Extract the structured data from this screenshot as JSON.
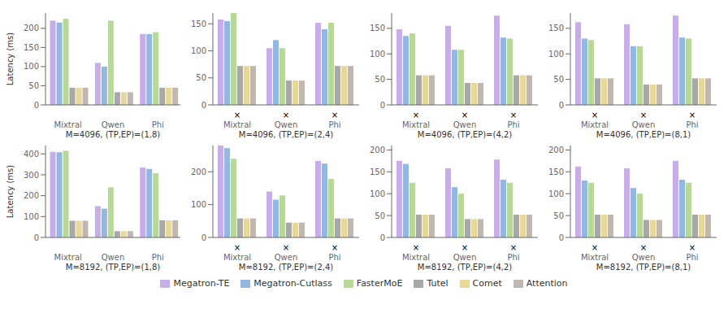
{
  "chart_data": [
    {
      "type": "bar",
      "xlabel": "M=4096, (TP,EP)=(1,8)",
      "ylabel": "Latency (ms)",
      "categories": [
        "Mixtral",
        "Qwen",
        "Phi"
      ],
      "ylim": [
        0,
        240
      ],
      "yticks": [
        0,
        50,
        100,
        150,
        200
      ],
      "series": [
        {
          "name": "Megatron-TE",
          "color": "#c8aee8",
          "values": [
            220,
            110,
            185
          ]
        },
        {
          "name": "Megatron-Cutlass",
          "color": "#92b8e0",
          "values": [
            215,
            100,
            185
          ]
        },
        {
          "name": "FasterMoE",
          "color": "#b8d898",
          "values": [
            225,
            220,
            190
          ]
        },
        {
          "name": "Tutel",
          "color": "#a8a8a8",
          "values": [
            45,
            33,
            45
          ]
        },
        {
          "name": "Comet",
          "color": "#e8d898",
          "values": [
            45,
            33,
            45
          ]
        },
        {
          "name": "Attention",
          "color": "#c0b8b0",
          "values": [
            45,
            33,
            45
          ]
        }
      ]
    },
    {
      "type": "bar",
      "xlabel": "M=4096, (TP,EP)=(2,4)",
      "categories": [
        "Mixtral",
        "Qwen",
        "Phi"
      ],
      "ylim": [
        0,
        170
      ],
      "yticks": [
        0,
        50,
        100,
        150
      ],
      "annotations": [
        {
          "text": "×",
          "x": "Mixtral"
        },
        {
          "text": "×",
          "x": "Qwen"
        },
        {
          "text": "×",
          "x": "Phi"
        }
      ],
      "series": [
        {
          "name": "Megatron-TE",
          "color": "#c8aee8",
          "values": [
            158,
            105,
            152
          ]
        },
        {
          "name": "Megatron-Cutlass",
          "color": "#92b8e0",
          "values": [
            155,
            120,
            140
          ]
        },
        {
          "name": "FasterMoE",
          "color": "#b8d898",
          "values": [
            170,
            105,
            152
          ]
        },
        {
          "name": "Tutel",
          "color": "#a8a8a8",
          "values": [
            72,
            45,
            72
          ]
        },
        {
          "name": "Comet",
          "color": "#e8d898",
          "values": [
            72,
            45,
            72
          ]
        },
        {
          "name": "Attention",
          "color": "#c0b8b0",
          "values": [
            72,
            45,
            72
          ]
        }
      ]
    },
    {
      "type": "bar",
      "xlabel": "M=4096, (TP,EP)=(4,2)",
      "categories": [
        "Mixtral",
        "Qwen",
        "Phi"
      ],
      "ylim": [
        0,
        180
      ],
      "yticks": [
        0,
        50,
        100,
        150
      ],
      "annotations": [
        {
          "text": "×",
          "x": "Mixtral"
        },
        {
          "text": "×",
          "x": "Qwen"
        },
        {
          "text": "×",
          "x": "Phi"
        }
      ],
      "series": [
        {
          "name": "Megatron-TE",
          "color": "#c8aee8",
          "values": [
            148,
            155,
            175
          ]
        },
        {
          "name": "Megatron-Cutlass",
          "color": "#92b8e0",
          "values": [
            135,
            108,
            132
          ]
        },
        {
          "name": "FasterMoE",
          "color": "#b8d898",
          "values": [
            140,
            108,
            130
          ]
        },
        {
          "name": "Tutel",
          "color": "#a8a8a8",
          "values": [
            58,
            43,
            58
          ]
        },
        {
          "name": "Comet",
          "color": "#e8d898",
          "values": [
            58,
            43,
            58
          ]
        },
        {
          "name": "Attention",
          "color": "#c0b8b0",
          "values": [
            58,
            43,
            58
          ]
        }
      ]
    },
    {
      "type": "bar",
      "xlabel": "M=4096, (TP,EP)=(8,1)",
      "categories": [
        "Mixtral",
        "Qwen",
        "Phi"
      ],
      "ylim": [
        0,
        180
      ],
      "yticks": [
        0,
        50,
        100,
        150
      ],
      "annotations": [
        {
          "text": "×",
          "x": "Mixtral"
        },
        {
          "text": "×",
          "x": "Qwen"
        },
        {
          "text": "×",
          "x": "Phi"
        }
      ],
      "series": [
        {
          "name": "Megatron-TE",
          "color": "#c8aee8",
          "values": [
            162,
            158,
            175
          ]
        },
        {
          "name": "Megatron-Cutlass",
          "color": "#92b8e0",
          "values": [
            130,
            115,
            132
          ]
        },
        {
          "name": "FasterMoE",
          "color": "#b8d898",
          "values": [
            127,
            115,
            130
          ]
        },
        {
          "name": "Tutel",
          "color": "#a8a8a8",
          "values": [
            52,
            40,
            52
          ]
        },
        {
          "name": "Comet",
          "color": "#e8d898",
          "values": [
            52,
            40,
            52
          ]
        },
        {
          "name": "Attention",
          "color": "#c0b8b0",
          "values": [
            52,
            40,
            52
          ]
        }
      ]
    },
    {
      "type": "bar",
      "xlabel": "M=8192, (TP,EP)=(1,8)",
      "ylabel": "Latency (ms)",
      "categories": [
        "Mixtral",
        "Qwen",
        "Phi"
      ],
      "ylim": [
        0,
        440
      ],
      "yticks": [
        0,
        100,
        200,
        300,
        400
      ],
      "series": [
        {
          "name": "Megatron-TE",
          "color": "#c8aee8",
          "values": [
            410,
            150,
            335
          ]
        },
        {
          "name": "Megatron-Cutlass",
          "color": "#92b8e0",
          "values": [
            408,
            138,
            328
          ]
        },
        {
          "name": "FasterMoE",
          "color": "#b8d898",
          "values": [
            415,
            240,
            308
          ]
        },
        {
          "name": "Tutel",
          "color": "#a8a8a8",
          "values": [
            80,
            30,
            82
          ]
        },
        {
          "name": "Comet",
          "color": "#e8d898",
          "values": [
            80,
            30,
            82
          ]
        },
        {
          "name": "Attention",
          "color": "#c0b8b0",
          "values": [
            80,
            30,
            82
          ]
        }
      ]
    },
    {
      "type": "bar",
      "xlabel": "M=8192, (TP,EP)=(2,4)",
      "categories": [
        "Mixtral",
        "Qwen",
        "Phi"
      ],
      "ylim": [
        0,
        280
      ],
      "yticks": [
        0,
        100,
        200
      ],
      "annotations": [
        {
          "text": "×",
          "x": "Mixtral"
        },
        {
          "text": "×",
          "x": "Qwen"
        },
        {
          "text": "×",
          "x": "Phi"
        }
      ],
      "series": [
        {
          "name": "Megatron-TE",
          "color": "#c8aee8",
          "values": [
            280,
            140,
            233
          ]
        },
        {
          "name": "Megatron-Cutlass",
          "color": "#92b8e0",
          "values": [
            272,
            115,
            225
          ]
        },
        {
          "name": "FasterMoE",
          "color": "#b8d898",
          "values": [
            240,
            128,
            178
          ]
        },
        {
          "name": "Tutel",
          "color": "#a8a8a8",
          "values": [
            58,
            45,
            58
          ]
        },
        {
          "name": "Comet",
          "color": "#e8d898",
          "values": [
            58,
            45,
            58
          ]
        },
        {
          "name": "Attention",
          "color": "#c0b8b0",
          "values": [
            58,
            45,
            58
          ]
        }
      ]
    },
    {
      "type": "bar",
      "xlabel": "M=8192, (TP,EP)=(4,2)",
      "categories": [
        "Mixtral",
        "Qwen",
        "Phi"
      ],
      "ylim": [
        0,
        210
      ],
      "yticks": [
        0,
        50,
        100,
        150,
        200
      ],
      "annotations": [
        {
          "text": "×",
          "x": "Mixtral"
        },
        {
          "text": "×",
          "x": "Qwen"
        },
        {
          "text": "×",
          "x": "Phi"
        }
      ],
      "series": [
        {
          "name": "Megatron-TE",
          "color": "#c8aee8",
          "values": [
            175,
            158,
            178
          ]
        },
        {
          "name": "Megatron-Cutlass",
          "color": "#92b8e0",
          "values": [
            168,
            115,
            132
          ]
        },
        {
          "name": "FasterMoE",
          "color": "#b8d898",
          "values": [
            125,
            100,
            125
          ]
        },
        {
          "name": "Tutel",
          "color": "#a8a8a8",
          "values": [
            52,
            42,
            52
          ]
        },
        {
          "name": "Comet",
          "color": "#e8d898",
          "values": [
            52,
            42,
            52
          ]
        },
        {
          "name": "Attention",
          "color": "#c0b8b0",
          "values": [
            52,
            42,
            52
          ]
        }
      ]
    },
    {
      "type": "bar",
      "xlabel": "M=8192, (TP,EP)=(8,1)",
      "categories": [
        "Mixtral",
        "Qwen",
        "Phi"
      ],
      "ylim": [
        0,
        210
      ],
      "yticks": [
        0,
        50,
        100,
        150,
        200
      ],
      "annotations": [
        {
          "text": "×",
          "x": "Mixtral"
        },
        {
          "text": "×",
          "x": "Qwen"
        },
        {
          "text": "×",
          "x": "Phi"
        }
      ],
      "series": [
        {
          "name": "Megatron-TE",
          "color": "#c8aee8",
          "values": [
            162,
            158,
            175
          ]
        },
        {
          "name": "Megatron-Cutlass",
          "color": "#92b8e0",
          "values": [
            130,
            113,
            132
          ]
        },
        {
          "name": "FasterMoE",
          "color": "#b8d898",
          "values": [
            125,
            100,
            125
          ]
        },
        {
          "name": "Tutel",
          "color": "#a8a8a8",
          "values": [
            52,
            40,
            52
          ]
        },
        {
          "name": "Comet",
          "color": "#e8d898",
          "values": [
            52,
            40,
            52
          ]
        },
        {
          "name": "Attention",
          "color": "#c0b8b0",
          "values": [
            52,
            40,
            52
          ]
        }
      ]
    }
  ]
}
